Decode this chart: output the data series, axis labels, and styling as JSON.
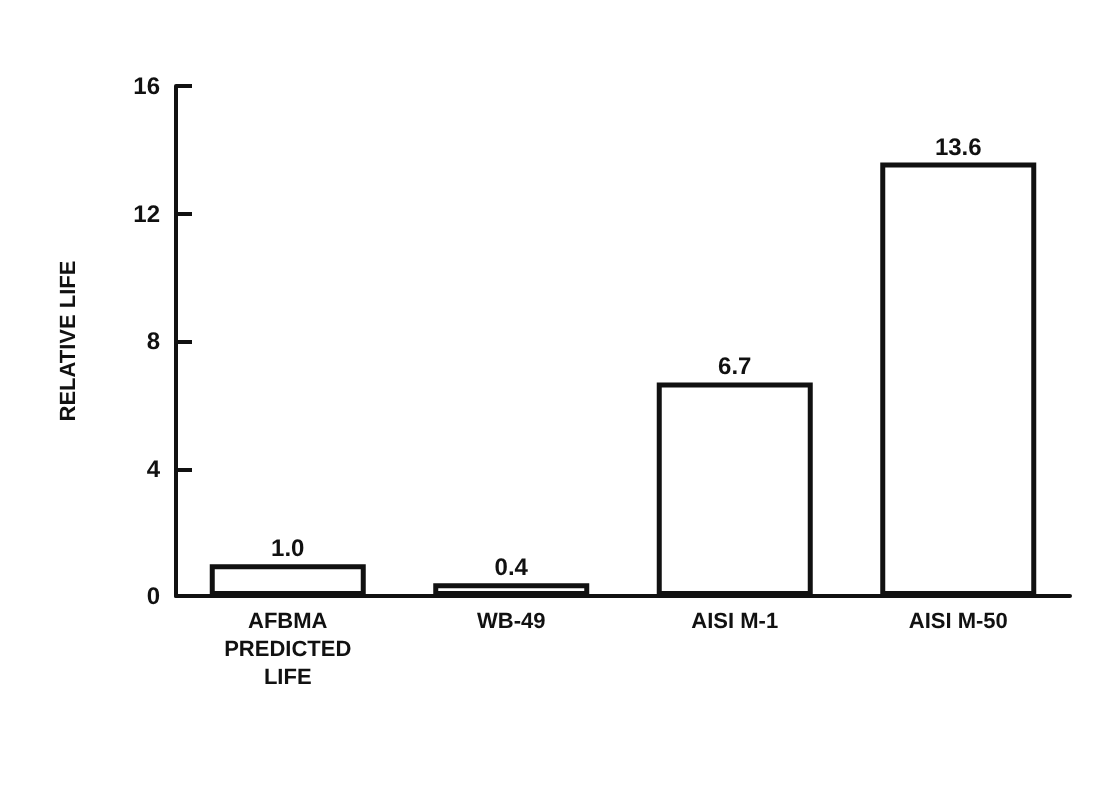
{
  "chart_data": {
    "type": "bar",
    "ylabel": "RELATIVE LIFE",
    "categories": [
      "AFBMA\nPREDICTED\nLIFE",
      "WB-49",
      "AISI M-1",
      "AISI M-50"
    ],
    "values": [
      1.0,
      0.4,
      6.7,
      13.6
    ],
    "value_labels": [
      "1.0",
      "0.4",
      "6.7",
      "13.6"
    ],
    "color": "#ffffff",
    "ylim": [
      0,
      16
    ],
    "yticks": [
      0,
      4,
      8,
      12,
      16
    ],
    "grid": false
  }
}
